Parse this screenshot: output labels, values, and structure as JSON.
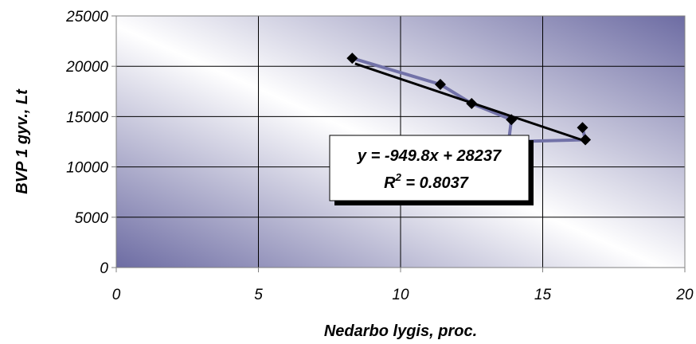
{
  "chart_data": {
    "type": "scatter",
    "xlabel": "Nedarbo lygis, proc.",
    "ylabel": "BVP 1 gyv., Lt",
    "xlim": [
      0,
      20
    ],
    "ylim": [
      0,
      25000
    ],
    "x_ticks": [
      "0",
      "5",
      "10",
      "15",
      "20"
    ],
    "y_ticks": [
      "0",
      "5000",
      "10000",
      "15000",
      "20000",
      "25000"
    ],
    "grid": true,
    "series": [
      {
        "points": [
          {
            "x": 8.3,
            "y": 20800
          },
          {
            "x": 11.4,
            "y": 18200
          },
          {
            "x": 12.5,
            "y": 16300
          },
          {
            "x": 13.9,
            "y": 14700
          },
          {
            "x": 13.8,
            "y": 12500
          },
          {
            "x": 16.5,
            "y": 12700
          },
          {
            "x": 16.4,
            "y": 13900
          }
        ],
        "color": "#7272a8",
        "marker_color": "#000000"
      }
    ],
    "trendline": {
      "slope": -949.8,
      "intercept": 28237,
      "x_range": [
        8.4,
        16.6
      ],
      "color": "#000000",
      "equation_label": "y = -949.8x + 28237",
      "r2_label_prefix": "R",
      "r2_label_sup": "2",
      "r2_label_value": " = 0.8037"
    }
  }
}
